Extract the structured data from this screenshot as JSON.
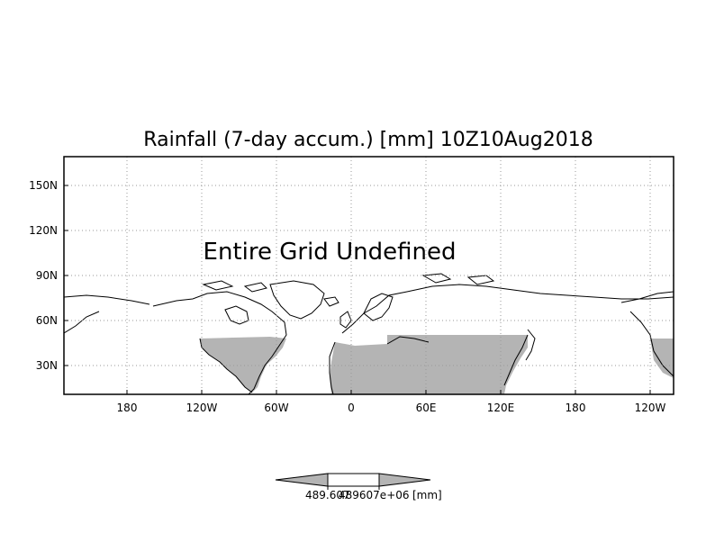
{
  "title": "Rainfall (7-day accum.) [mm] 10Z10Aug2018",
  "overlay_message": "Entire Grid Undefined",
  "lat_labels": [
    "150N",
    "120N",
    "90N",
    "60N",
    "30N"
  ],
  "lon_labels": [
    "180",
    "120W",
    "60W",
    "0",
    "60E",
    "120E",
    "180",
    "120W"
  ],
  "colorbar": {
    "label_left": "489.607",
    "label_right": "489607e+06",
    "unit": "[mm]"
  },
  "colors": {
    "land_fill": "#b4b4b4",
    "background": "#ffffff",
    "line": "#000000",
    "grid": "#9a9a9a"
  }
}
